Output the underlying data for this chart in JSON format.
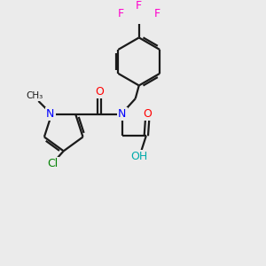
{
  "bg_color": "#ebebeb",
  "bond_color": "#1a1a1a",
  "N_color": "#0000ff",
  "O_color": "#ff0000",
  "Cl_color": "#008000",
  "F_color": "#ff00cc",
  "OH_color": "#00aaaa",
  "lw": 1.6,
  "figsize": [
    3.0,
    3.0
  ],
  "dpi": 100,
  "xlim": [
    0,
    10
  ],
  "ylim": [
    0,
    10
  ]
}
